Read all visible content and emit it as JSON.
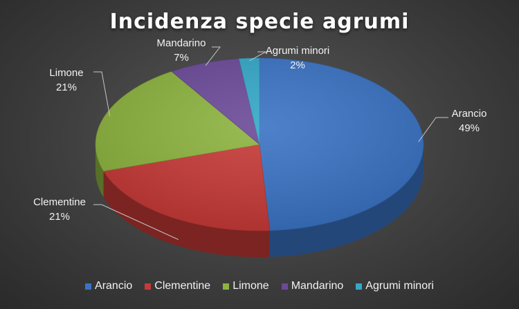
{
  "chart_data": {
    "type": "pie",
    "title": "Incidenza specie agrumi",
    "categories": [
      "Arancio",
      "Clementine",
      "Limone",
      "Mandarino",
      "Agrumi minori"
    ],
    "values": [
      49,
      21,
      21,
      7,
      2
    ],
    "value_labels": [
      "49%",
      "21%",
      "21%",
      "7%",
      "2%"
    ],
    "colors": [
      "#3a73c4",
      "#c63a37",
      "#8db33f",
      "#6b4a98",
      "#34a8c8"
    ],
    "legend_position": "bottom",
    "style": "3d"
  }
}
